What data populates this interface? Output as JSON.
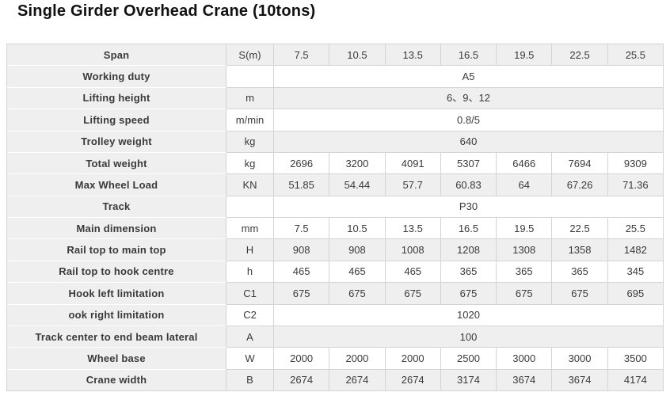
{
  "page_title": "Single Girder Overhead Crane (10tons)",
  "colors": {
    "stripe_gray": "#efefef",
    "row_white": "#ffffff",
    "border": "#d4d4d4",
    "label_separator": "#ffffff",
    "cell_text": "#3a3a3a",
    "title_text": "#111111"
  },
  "table": {
    "data_column_count": 7,
    "rows": [
      {
        "label": "Span",
        "unit": "S(m)",
        "shade": "gray",
        "cells": [
          "7.5",
          "10.5",
          "13.5",
          "16.5",
          "19.5",
          "22.5",
          "25.5"
        ]
      },
      {
        "label": "Working duty",
        "unit": "",
        "shade": "white",
        "merged": "A5"
      },
      {
        "label": "Lifting height",
        "unit": "m",
        "shade": "gray",
        "merged": "6、9、12"
      },
      {
        "label": "Lifting speed",
        "unit": "m/min",
        "shade": "white",
        "merged": "0.8/5"
      },
      {
        "label": "Trolley weight",
        "unit": "kg",
        "shade": "gray",
        "merged": "640"
      },
      {
        "label": "Total weight",
        "unit": "kg",
        "shade": "white",
        "cells": [
          "2696",
          "3200",
          "4091",
          "5307",
          "6466",
          "7694",
          "9309"
        ]
      },
      {
        "label": "Max Wheel Load",
        "unit": "KN",
        "shade": "gray",
        "cells": [
          "51.85",
          "54.44",
          "57.7",
          "60.83",
          "64",
          "67.26",
          "71.36"
        ]
      },
      {
        "label": "Track",
        "unit": "",
        "shade": "white",
        "merged": "P30"
      },
      {
        "label": "Main dimension",
        "unit": "mm",
        "shade": "white",
        "cells": [
          "7.5",
          "10.5",
          "13.5",
          "16.5",
          "19.5",
          "22.5",
          "25.5"
        ]
      },
      {
        "label": "Rail top to main top",
        "unit": "H",
        "shade": "gray",
        "cells": [
          "908",
          "908",
          "1008",
          "1208",
          "1308",
          "1358",
          "1482"
        ]
      },
      {
        "label": "Rail top to hook centre",
        "unit": "h",
        "shade": "white",
        "cells": [
          "465",
          "465",
          "465",
          "365",
          "365",
          "365",
          "345"
        ]
      },
      {
        "label": "Hook left limitation",
        "unit": "C1",
        "shade": "gray",
        "cells": [
          "675",
          "675",
          "675",
          "675",
          "675",
          "675",
          "695"
        ]
      },
      {
        "label": "ook right limitation",
        "unit": "C2",
        "shade": "white",
        "merged": "1020"
      },
      {
        "label": "Track center to end beam lateral",
        "unit": "A",
        "shade": "gray",
        "merged": "100"
      },
      {
        "label": "Wheel base",
        "unit": "W",
        "shade": "white",
        "cells": [
          "2000",
          "2000",
          "2000",
          "2500",
          "3000",
          "3000",
          "3500"
        ]
      },
      {
        "label": "Crane width",
        "unit": "B",
        "shade": "gray",
        "cells": [
          "2674",
          "2674",
          "2674",
          "3174",
          "3674",
          "3674",
          "4174"
        ]
      }
    ]
  }
}
